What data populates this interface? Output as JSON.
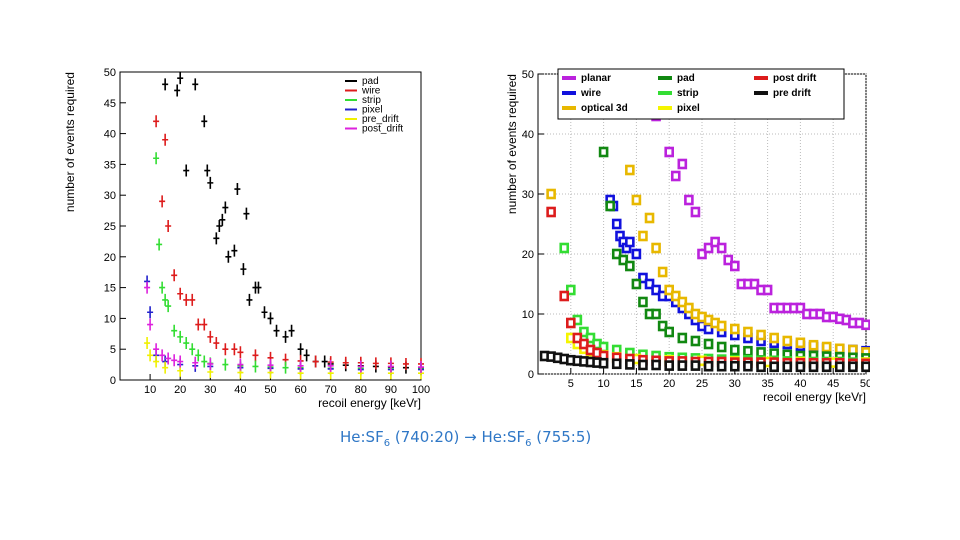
{
  "chart_data": [
    {
      "type": "scatter",
      "title": "",
      "xlabel": "recoil energy [keVr]",
      "ylabel": "number of events required",
      "xlim": [
        0,
        100
      ],
      "ylim": [
        0,
        50
      ],
      "xticks": [
        10,
        20,
        30,
        40,
        50,
        60,
        70,
        80,
        90,
        100
      ],
      "yticks": [
        0,
        5,
        10,
        15,
        20,
        25,
        30,
        35,
        40,
        45,
        50
      ],
      "legend_position": "top-right",
      "series": [
        {
          "name": "pad",
          "color": "#000000",
          "x": [
            15,
            19,
            20,
            22,
            25,
            28,
            29,
            30,
            32,
            33,
            34,
            35,
            36,
            38,
            39,
            41,
            42,
            43,
            45,
            46,
            48,
            50,
            52,
            55,
            57,
            60,
            62,
            65,
            68,
            70,
            75,
            80,
            85,
            90,
            95,
            100
          ],
          "y": [
            48,
            47,
            49,
            34,
            48,
            42,
            34,
            32,
            23,
            25,
            26,
            28,
            20,
            21,
            31,
            18,
            27,
            13,
            15,
            15,
            11,
            10,
            8,
            7,
            8,
            5,
            4,
            3,
            3,
            2.6,
            2.4,
            2.3,
            2.2,
            2.1,
            2.0,
            1.9
          ]
        },
        {
          "name": "wire",
          "color": "#dd1c1c",
          "x": [
            12,
            14,
            15,
            16,
            18,
            20,
            22,
            24,
            26,
            28,
            30,
            32,
            35,
            38,
            40,
            45,
            50,
            55,
            60,
            65,
            70,
            75,
            80,
            85,
            90,
            95,
            100
          ],
          "y": [
            42,
            29,
            39,
            25,
            17,
            14,
            13,
            13,
            9,
            9,
            7,
            6,
            5,
            5,
            4.5,
            4,
            3.6,
            3.3,
            3.1,
            3,
            2.9,
            2.8,
            2.8,
            2.7,
            2.7,
            2.6,
            2.6
          ]
        },
        {
          "name": "strip",
          "color": "#33dd33",
          "x": [
            12,
            13,
            14,
            15,
            16,
            18,
            20,
            22,
            24,
            26,
            28,
            30,
            35,
            40,
            45,
            50,
            55,
            60,
            70,
            80,
            90,
            100
          ],
          "y": [
            36,
            22,
            15,
            13,
            12,
            8,
            7,
            6,
            5,
            4,
            3,
            2.7,
            2.5,
            2.3,
            2.2,
            2.1,
            2.0,
            2.0,
            1.9,
            1.9,
            1.8,
            1.8
          ]
        },
        {
          "name": "pixel",
          "color": "#2222cc",
          "x": [
            9,
            10,
            12,
            15,
            20,
            25,
            30,
            40,
            50,
            60,
            70,
            80,
            90,
            100
          ],
          "y": [
            16,
            11,
            4,
            3,
            2.5,
            2.3,
            2.2,
            2.0,
            1.9,
            1.8,
            1.8,
            1.7,
            1.7,
            1.7
          ]
        },
        {
          "name": "pre_drift",
          "color": "#f0f000",
          "x": [
            9,
            10,
            12,
            15,
            20,
            30,
            40,
            50,
            60,
            70,
            80,
            90,
            100
          ],
          "y": [
            6,
            4,
            3,
            2,
            1.5,
            1.3,
            1.2,
            1.2,
            1.1,
            1.1,
            1.1,
            1.1,
            1.1
          ]
        },
        {
          "name": "post_drift",
          "color": "#dd22dd",
          "x": [
            9,
            10,
            12,
            14,
            16,
            18,
            20,
            25,
            30,
            40,
            50,
            60,
            70,
            80,
            90,
            100
          ],
          "y": [
            15,
            9,
            5,
            4,
            3.5,
            3.2,
            3,
            2.8,
            2.6,
            2.5,
            2.4,
            2.3,
            2.3,
            2.2,
            2.2,
            2.1
          ]
        }
      ]
    },
    {
      "type": "scatter",
      "title": "",
      "xlabel": "recoil energy [keVr]",
      "ylabel": "number of events required",
      "xlim": [
        0,
        50
      ],
      "ylim": [
        0,
        50
      ],
      "xticks": [
        5,
        10,
        15,
        20,
        25,
        30,
        35,
        40,
        45,
        50
      ],
      "yticks": [
        0,
        10,
        20,
        30,
        40,
        50
      ],
      "legend_position": "top",
      "series": [
        {
          "name": "planar",
          "color": "#bb22dd",
          "x": [
            18,
            20,
            21,
            22,
            23,
            24,
            25,
            26,
            27,
            28,
            29,
            30,
            31,
            32,
            33,
            34,
            35,
            36,
            37,
            38,
            39,
            40,
            41,
            42,
            43,
            44,
            45,
            46,
            47,
            48,
            49,
            50
          ],
          "y": [
            43,
            37,
            33,
            35,
            29,
            27,
            20,
            21,
            22,
            21,
            19,
            18,
            15,
            15,
            15,
            14,
            14,
            11,
            11,
            11,
            11,
            11,
            10,
            10,
            10,
            9.5,
            9.5,
            9.2,
            9,
            8.5,
            8.5,
            8.2
          ]
        },
        {
          "name": "wire",
          "color": "#1111dd",
          "x": [
            11,
            11.5,
            12,
            12.5,
            13,
            13.5,
            14,
            15,
            16,
            17,
            18,
            19,
            20,
            21,
            22,
            23,
            24,
            25,
            26,
            28,
            30,
            32,
            34,
            36,
            38,
            40,
            42,
            44,
            46,
            48,
            50
          ],
          "y": [
            29,
            28,
            25,
            23,
            22,
            21,
            22,
            20,
            16,
            15,
            14,
            13,
            13,
            12,
            11,
            10,
            9,
            8,
            7.5,
            7,
            6.5,
            6,
            5.5,
            5.2,
            5,
            4.7,
            4.5,
            4.3,
            4.1,
            4,
            3.8
          ]
        },
        {
          "name": "optical 3d",
          "color": "#e8b800",
          "x": [
            2,
            14,
            15,
            16,
            17,
            18,
            19,
            20,
            21,
            22,
            23,
            24,
            25,
            26,
            27,
            28,
            30,
            32,
            34,
            36,
            38,
            40,
            42,
            44,
            46,
            48,
            50
          ],
          "y": [
            30,
            34,
            29,
            23,
            26,
            21,
            17,
            14,
            13,
            12,
            11,
            10,
            9.5,
            9,
            8.5,
            8,
            7.5,
            7,
            6.5,
            6,
            5.5,
            5.2,
            4.8,
            4.5,
            4.2,
            4,
            3.6
          ]
        },
        {
          "name": "pad",
          "color": "#118811",
          "x": [
            10,
            11,
            12,
            13,
            14,
            15,
            16,
            17,
            18,
            19,
            20,
            22,
            24,
            26,
            28,
            30,
            32,
            34,
            36,
            38,
            40,
            42,
            44,
            46,
            48,
            50
          ],
          "y": [
            37,
            28,
            20,
            19,
            18,
            15,
            12,
            10,
            10,
            8,
            7,
            6,
            5.5,
            5,
            4.5,
            4,
            3.8,
            3.6,
            3.4,
            3.2,
            3,
            3,
            2.9,
            2.8,
            2.7,
            2.6
          ]
        },
        {
          "name": "strip",
          "color": "#33dd33",
          "x": [
            4,
            5,
            6,
            7,
            8,
            9,
            10,
            12,
            14,
            16,
            18,
            20,
            22,
            24,
            26,
            28,
            30,
            32,
            34,
            36,
            38,
            40,
            42,
            44,
            46,
            48,
            50
          ],
          "y": [
            21,
            14,
            9,
            7,
            6,
            5,
            4.5,
            4,
            3.5,
            3.2,
            3,
            2.8,
            2.7,
            2.6,
            2.5,
            2.4,
            2.3,
            2.3,
            2.2,
            2.2,
            2.1,
            2.1,
            2,
            2,
            2,
            1.9,
            1.9
          ]
        },
        {
          "name": "pixel",
          "color": "#f5f500",
          "x": [
            5,
            6,
            7,
            8,
            9,
            10,
            12,
            15,
            20,
            25,
            30,
            35,
            40,
            45,
            50
          ],
          "y": [
            6,
            5,
            4.2,
            3.8,
            3.4,
            3.1,
            2.8,
            2.5,
            2.3,
            2.2,
            2.1,
            2,
            2,
            1.9,
            1.9
          ]
        },
        {
          "name": "post drift",
          "color": "#dd1c1c",
          "x": [
            2,
            4,
            5,
            6,
            7,
            8,
            9,
            10,
            12,
            14,
            16,
            18,
            20,
            22,
            24,
            26,
            28,
            30,
            32,
            34,
            36,
            38,
            40,
            42,
            44,
            46,
            48,
            50
          ],
          "y": [
            27,
            13,
            8.5,
            6,
            5,
            4,
            3.5,
            3,
            2.7,
            2.5,
            2.3,
            2.2,
            2.1,
            2.1,
            2,
            2,
            2,
            1.9,
            1.9,
            1.9,
            1.9,
            1.8,
            1.8,
            1.8,
            1.8,
            1.8,
            1.7,
            1.7
          ]
        },
        {
          "name": "pre drift",
          "color": "#111111",
          "x": [
            1,
            2,
            3,
            4,
            5,
            6,
            7,
            8,
            9,
            10,
            12,
            14,
            16,
            18,
            20,
            22,
            24,
            26,
            28,
            30,
            32,
            34,
            36,
            38,
            40,
            42,
            44,
            46,
            48,
            50
          ],
          "y": [
            3,
            2.9,
            2.7,
            2.5,
            2.3,
            2.2,
            2.1,
            2,
            1.9,
            1.8,
            1.7,
            1.6,
            1.5,
            1.5,
            1.4,
            1.4,
            1.4,
            1.3,
            1.3,
            1.3,
            1.3,
            1.2,
            1.2,
            1.2,
            1.2,
            1.2,
            1.2,
            1.2,
            1.2,
            1.2
          ]
        }
      ]
    }
  ],
  "caption": {
    "prefix": "He:SF",
    "sub": "6",
    "mid": " (740:20) → He:SF",
    "sub2": "6",
    "suffix": " (755:5)"
  }
}
